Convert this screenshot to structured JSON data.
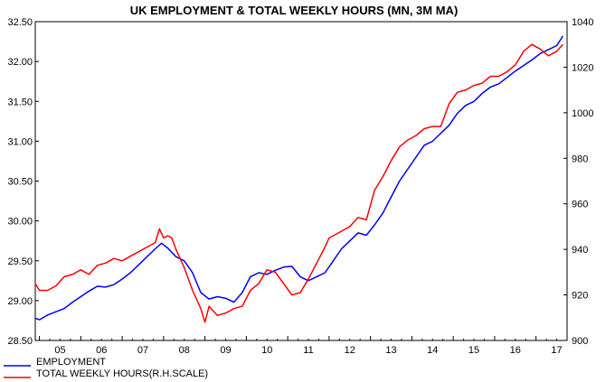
{
  "chart_data": {
    "type": "line",
    "title": "UK EMPLOYMENT & TOTAL WEEKLY HOURS (MN, 3M MA)",
    "x_tick_labels": [
      "05",
      "06",
      "07",
      "08",
      "09",
      "10",
      "11",
      "12",
      "13",
      "14",
      "15",
      "16",
      "17"
    ],
    "x_range": [
      2004.9,
      2017.75
    ],
    "left_axis": {
      "ylim": [
        28.5,
        32.5
      ],
      "ticks": [
        "28.50",
        "29.00",
        "29.50",
        "30.00",
        "30.50",
        "31.00",
        "31.50",
        "32.00",
        "32.50"
      ]
    },
    "right_axis": {
      "ylim": [
        900,
        1040
      ],
      "ticks": [
        "900",
        "920",
        "940",
        "960",
        "980",
        "1000",
        "1020",
        "1040"
      ]
    },
    "grid": false,
    "legend_position": "bottom-left",
    "colors": {
      "employment": "#0000ff",
      "hours": "#ff0000"
    },
    "series": [
      {
        "name": "EMPLOYMENT",
        "axis": "left",
        "x": [
          2004.9,
          2005.0,
          2005.2,
          2005.4,
          2005.6,
          2005.8,
          2006.0,
          2006.2,
          2006.4,
          2006.6,
          2006.8,
          2007.0,
          2007.2,
          2007.4,
          2007.6,
          2007.8,
          2007.95,
          2008.1,
          2008.3,
          2008.5,
          2008.7,
          2008.9,
          2009.1,
          2009.3,
          2009.5,
          2009.7,
          2009.9,
          2010.1,
          2010.3,
          2010.5,
          2010.7,
          2010.9,
          2011.1,
          2011.3,
          2011.5,
          2011.7,
          2011.9,
          2012.1,
          2012.3,
          2012.5,
          2012.7,
          2012.9,
          2013.1,
          2013.3,
          2013.5,
          2013.7,
          2013.9,
          2014.1,
          2014.3,
          2014.5,
          2014.7,
          2014.9,
          2015.1,
          2015.3,
          2015.5,
          2015.7,
          2015.9,
          2016.1,
          2016.3,
          2016.5,
          2016.7,
          2016.9,
          2017.1,
          2017.3,
          2017.5,
          2017.65
        ],
        "values": [
          28.78,
          28.76,
          28.82,
          28.86,
          28.9,
          28.98,
          29.05,
          29.12,
          29.18,
          29.17,
          29.2,
          29.27,
          29.35,
          29.45,
          29.55,
          29.65,
          29.72,
          29.66,
          29.55,
          29.5,
          29.35,
          29.1,
          29.02,
          29.05,
          29.03,
          28.98,
          29.1,
          29.3,
          29.35,
          29.33,
          29.38,
          29.42,
          29.43,
          29.3,
          29.25,
          29.3,
          29.35,
          29.5,
          29.65,
          29.75,
          29.85,
          29.82,
          29.95,
          30.1,
          30.3,
          30.5,
          30.65,
          30.8,
          30.95,
          31.0,
          31.1,
          31.2,
          31.35,
          31.45,
          31.5,
          31.6,
          31.68,
          31.72,
          31.8,
          31.88,
          31.95,
          32.02,
          32.1,
          32.15,
          32.2,
          32.32
        ]
      },
      {
        "name": "TOTAL WEEKLY HOURS(R.H.SCALE)",
        "axis": "right",
        "x": [
          2004.9,
          2005.0,
          2005.2,
          2005.4,
          2005.6,
          2005.8,
          2006.0,
          2006.2,
          2006.4,
          2006.6,
          2006.8,
          2007.0,
          2007.2,
          2007.4,
          2007.6,
          2007.8,
          2007.9,
          2008.0,
          2008.1,
          2008.2,
          2008.3,
          2008.5,
          2008.7,
          2008.9,
          2009.0,
          2009.1,
          2009.3,
          2009.5,
          2009.7,
          2009.9,
          2010.1,
          2010.3,
          2010.5,
          2010.7,
          2010.9,
          2011.1,
          2011.3,
          2011.5,
          2011.7,
          2011.9,
          2012.0,
          2012.1,
          2012.3,
          2012.5,
          2012.7,
          2012.9,
          2013.1,
          2013.3,
          2013.5,
          2013.7,
          2013.9,
          2014.1,
          2014.3,
          2014.5,
          2014.7,
          2014.9,
          2015.1,
          2015.3,
          2015.5,
          2015.7,
          2015.9,
          2016.1,
          2016.3,
          2016.5,
          2016.7,
          2016.9,
          2017.1,
          2017.3,
          2017.5,
          2017.65
        ],
        "values": [
          925,
          922,
          922,
          924,
          928,
          929,
          931,
          929,
          933,
          934,
          936,
          935,
          937,
          939,
          941,
          943,
          949,
          945,
          946,
          945,
          940,
          932,
          922,
          914,
          908,
          915,
          911,
          912,
          914,
          915,
          922,
          925,
          931,
          930,
          925,
          920,
          921,
          927,
          934,
          941,
          945,
          946,
          948,
          950,
          954,
          953,
          966,
          972,
          979,
          985,
          988,
          990,
          993,
          994,
          994,
          1004,
          1009,
          1010,
          1012,
          1013,
          1016,
          1016,
          1018,
          1021,
          1027,
          1030,
          1028,
          1025,
          1027,
          1030
        ]
      }
    ]
  }
}
